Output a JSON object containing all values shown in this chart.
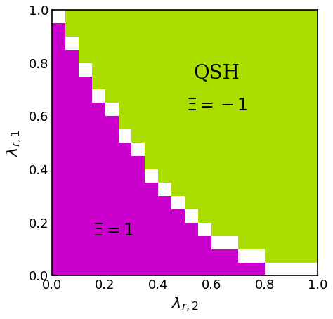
{
  "title": "",
  "xlabel": "$\\lambda_{r,2}$",
  "ylabel": "$\\lambda_{r,1}$",
  "xlim": [
    0,
    1
  ],
  "ylim": [
    0,
    1
  ],
  "color_green": "#AADD00",
  "color_magenta": "#CC00CC",
  "color_white": "#FFFFFF",
  "label_qsh": "QSH",
  "label_xi_neg": "$\\Xi = -1$",
  "label_xi_pos": "$\\Xi = 1$",
  "n_steps": 20,
  "figsize": [
    4.74,
    4.54
  ],
  "dpi": 100,
  "xticks": [
    0.0,
    0.2,
    0.4,
    0.6,
    0.8,
    1.0
  ],
  "yticks": [
    0.0,
    0.2,
    0.4,
    0.6,
    0.8,
    1.0
  ],
  "tick_fontsize": 13,
  "label_fontsize": 16,
  "boundary_power": 2.0,
  "boundary_scale": 1.0
}
